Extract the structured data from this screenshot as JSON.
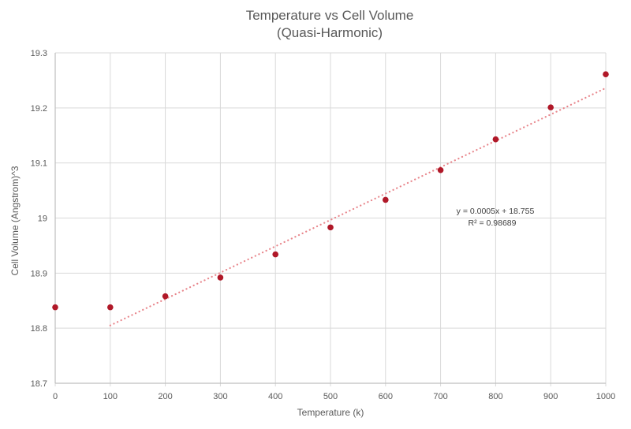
{
  "chart_data": {
    "type": "scatter",
    "title": [
      "Temperature vs Cell Volume",
      "(Quasi-Harmonic)"
    ],
    "xlabel": "Temperature (k)",
    "ylabel": "Cell Volume (Angstrom)^3",
    "xlim": [
      0,
      1000
    ],
    "ylim": [
      18.7,
      19.3
    ],
    "x_ticks": [
      0,
      100,
      200,
      300,
      400,
      500,
      600,
      700,
      800,
      900,
      1000
    ],
    "y_ticks": [
      18.7,
      18.8,
      18.9,
      19,
      19.1,
      19.2,
      19.3
    ],
    "x_tick_labels": [
      "0",
      "100",
      "200",
      "300",
      "400",
      "500",
      "600",
      "700",
      "800",
      "900",
      "1000"
    ],
    "y_tick_labels": [
      "18.7",
      "18.8",
      "18.9",
      "19",
      "19.1",
      "19.2",
      "19.3"
    ],
    "grid": true,
    "legend": "none",
    "series": [
      {
        "name": "Cell Volume",
        "color": "#b01828",
        "x": [
          0,
          100,
          200,
          300,
          400,
          500,
          600,
          700,
          800,
          900,
          1000
        ],
        "y": [
          18.838,
          18.838,
          18.858,
          18.892,
          18.934,
          18.983,
          19.033,
          19.087,
          19.143,
          19.201,
          19.261
        ]
      }
    ],
    "trendline": {
      "type": "linear",
      "style": "dotted",
      "color": "#e8868c",
      "x_range": [
        100,
        1000
      ],
      "y_start": 18.805,
      "y_end": 19.236,
      "equation": "y = 0.0005x + 18.755",
      "r_squared": "R² = 0.98689"
    }
  }
}
